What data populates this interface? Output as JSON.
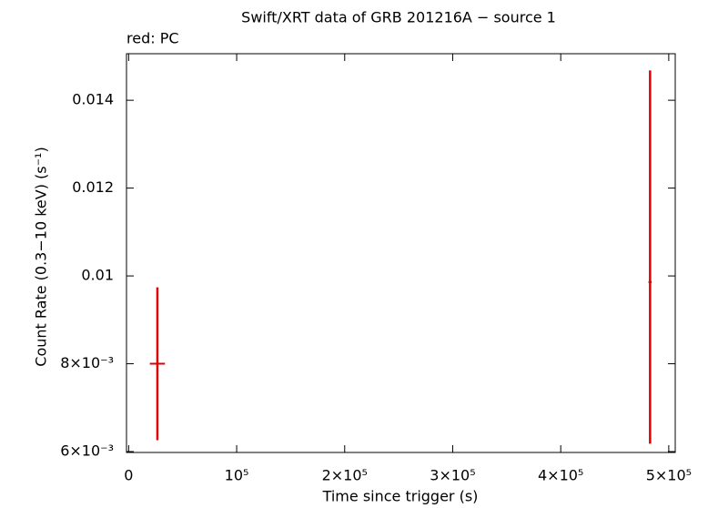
{
  "chart_data": {
    "type": "errorbar",
    "title": "Swift/XRT data of GRB 201216A − source 1",
    "annotation": "red: PC",
    "x_label": "Time since trigger (s)",
    "y_label": "Count Rate (0.3−10 keV) (s⁻¹)",
    "xlim": [
      -2000,
      506000
    ],
    "ylim": [
      0.00598,
      0.01506
    ],
    "xticks": [
      0,
      {
        "value": 100000,
        "label": "10⁵"
      },
      {
        "value": 200000,
        "label": "2×10⁵"
      },
      {
        "value": 300000,
        "label": "3×10⁵"
      },
      {
        "value": 400000,
        "label": "4×10⁵"
      },
      {
        "value": 500000,
        "label": "5×10⁵"
      }
    ],
    "yticks": [
      {
        "value": 0.006,
        "label": "6×10⁻³"
      },
      {
        "value": 0.008,
        "label": "8×10⁻³"
      },
      {
        "value": 0.01,
        "label": "0.01"
      },
      {
        "value": 0.012,
        "label": "0.012"
      },
      {
        "value": 0.014,
        "label": "0.014"
      }
    ],
    "series": [
      {
        "name": "PC",
        "color": "#e00000",
        "x": [
          26600,
          482700
        ],
        "xerr_minus": [
          7000,
          1500
        ],
        "xerr_plus": [
          7000,
          1500
        ],
        "values": [
          0.008,
          0.00986
        ],
        "yerr_minus": [
          0.00174,
          0.00368
        ],
        "yerr_plus": [
          0.00174,
          0.00482
        ]
      }
    ]
  }
}
